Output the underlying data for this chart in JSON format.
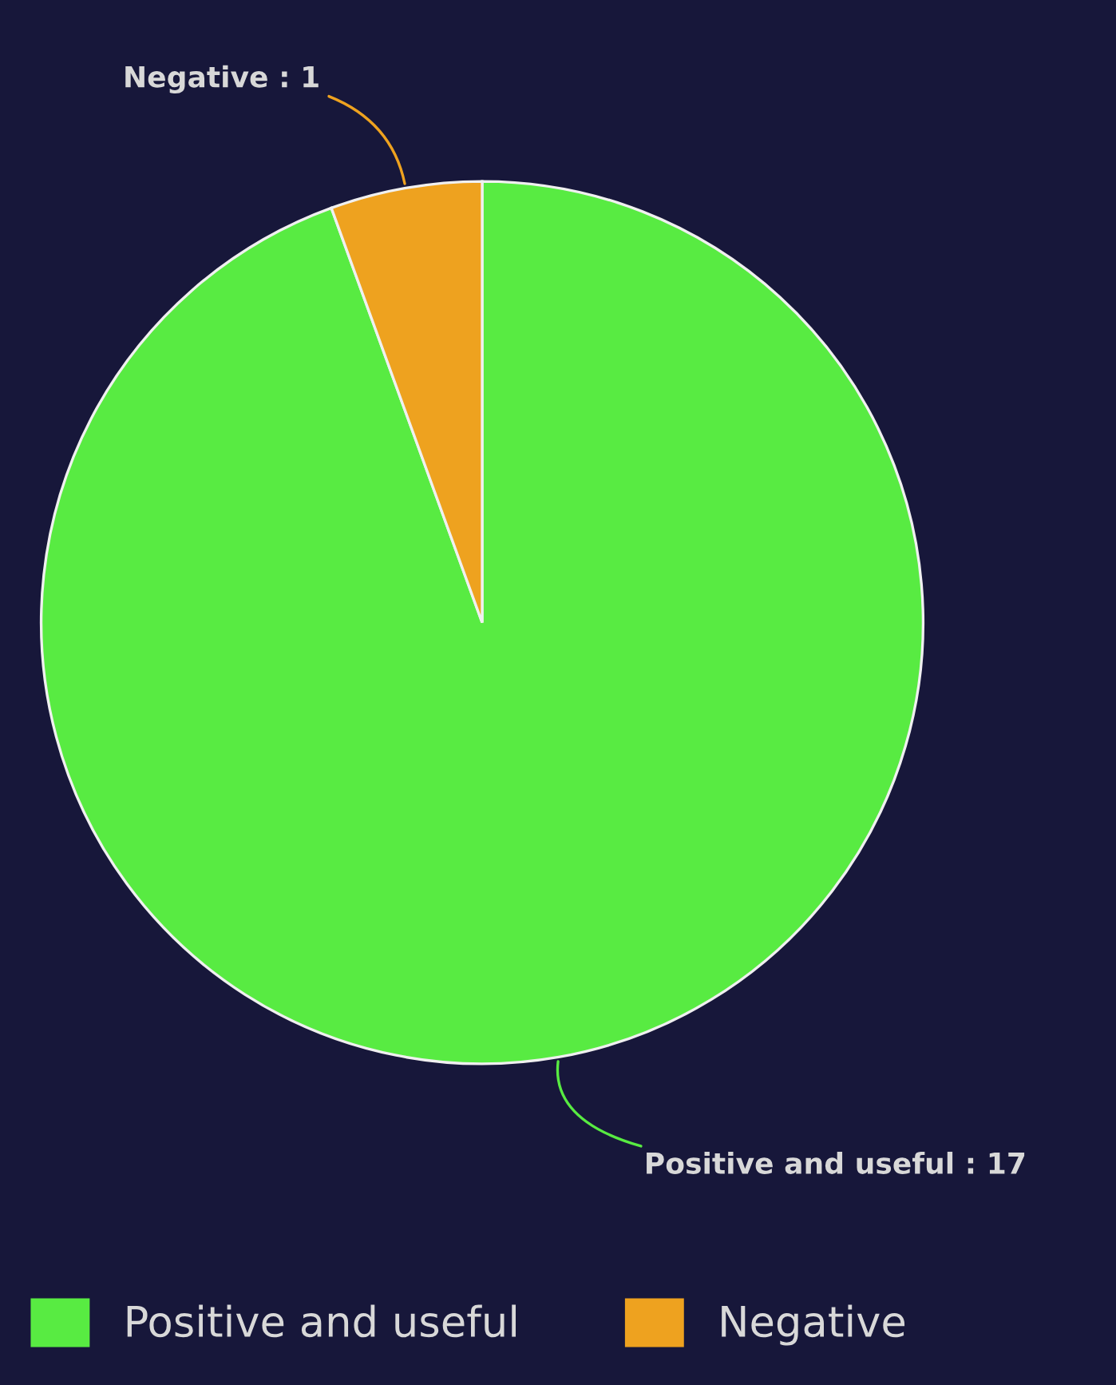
{
  "chart_data": {
    "type": "pie",
    "categories": [
      "Positive and useful",
      "Negative"
    ],
    "values": [
      17,
      1
    ],
    "colors": [
      "#58eb42",
      "#eea21f"
    ],
    "value_labels": [
      "Positive and useful : 17",
      "Negative : 1"
    ],
    "legend": "bottom"
  }
}
